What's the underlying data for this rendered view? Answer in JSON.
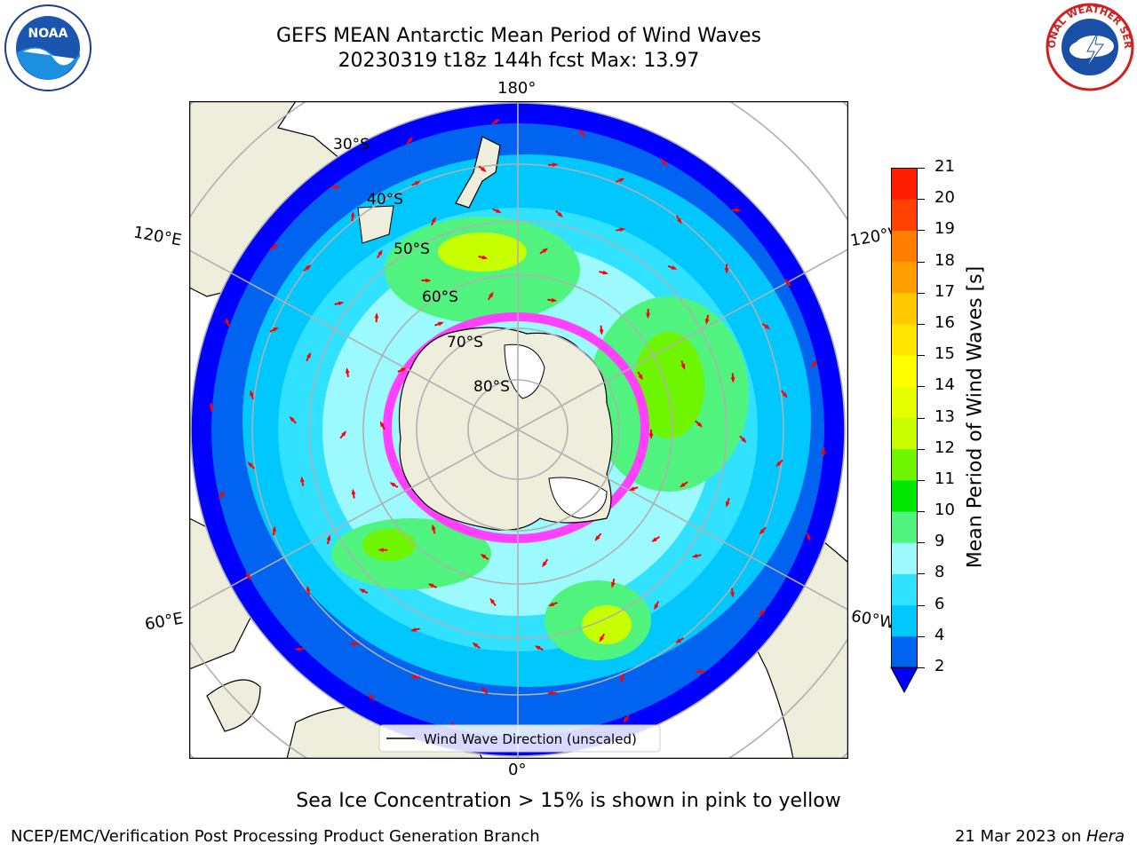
{
  "title": {
    "line1": "GEFS MEAN Antarctic Mean Period of Wind Waves",
    "line2": "20230319 t18z 144h fcst   Max: 13.97"
  },
  "logos": {
    "left_icon": "noaa-logo",
    "left_text": "NOAA",
    "right_icon": "national-weather-service-logo",
    "right_text": "NATIONAL WEATHER SERVICE"
  },
  "map": {
    "projection": "south-polar-stereographic",
    "lon_labels": {
      "top": "180°",
      "bottom": "0°",
      "left_upper": "120°E",
      "left_lower": "60°E",
      "right_upper": "120°W",
      "right_lower": "60°W"
    },
    "lat_labels": [
      "30°S",
      "40°S",
      "50°S",
      "60°S",
      "70°S",
      "80°S"
    ],
    "legend_label": "Wind Wave Direction (unscaled)",
    "arrow_color": "#ff0000",
    "land_color": "#efeedc",
    "grid_color": "#b0b0b0"
  },
  "colorbar": {
    "label": "Mean Period of Wind Waves [s]",
    "ticks": [
      "2",
      "4",
      "6",
      "8",
      "9",
      "10",
      "11",
      "12",
      "13",
      "14",
      "15",
      "16",
      "17",
      "18",
      "19",
      "20",
      "21"
    ],
    "colors": [
      "#0064f0",
      "#00c8ff",
      "#30e2ff",
      "#9cfaff",
      "#50f37d",
      "#00e600",
      "#6ef500",
      "#c8ff00",
      "#e6ff00",
      "#ffff00",
      "#ffe600",
      "#ffc800",
      "#ffa000",
      "#ff7d00",
      "#ff4100",
      "#ff1e00",
      "#ff0000"
    ],
    "extend_color": "#0000ff"
  },
  "caption": "Sea Ice Concentration > 15% is shown in pink to yellow",
  "footer": {
    "left": "NCEP/EMC/Verification Post Processing Product Generation Branch",
    "right_prefix": "21 Mar 2023 on ",
    "right_italic": "Hera"
  }
}
